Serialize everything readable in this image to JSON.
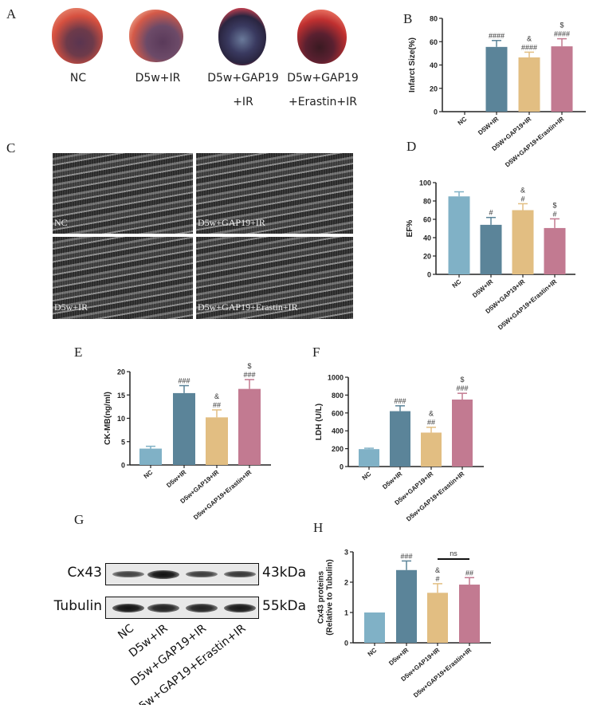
{
  "panels": {
    "A": "A",
    "B": "B",
    "C": "C",
    "D": "D",
    "E": "E",
    "F": "F",
    "G": "G",
    "H": "H"
  },
  "panel_a": {
    "groups": [
      "NC",
      "D5w+IR",
      "D5w+GAP19",
      "D5w+GAP19"
    ],
    "groups_line2": [
      "",
      "",
      "+IR",
      "+Erastin+IR"
    ]
  },
  "panel_c": {
    "labels": [
      "NC",
      "D5w+GAP19+IR",
      "D5w+IR",
      "D5w+GAP19+Erastin+IR"
    ]
  },
  "panel_g": {
    "proteins": [
      "Cx43",
      "Tubulin"
    ],
    "sizes": [
      "43kDa",
      "55kDa"
    ],
    "lanes": [
      "NC",
      "D5w+IR",
      "D5w+GAP19+IR",
      "D5w+GAP19+Erastin+IR"
    ],
    "band_intensity": {
      "Cx43": [
        0.55,
        1.0,
        0.6,
        0.65
      ],
      "Tubulin": [
        1.0,
        0.85,
        0.85,
        0.95
      ]
    }
  },
  "colors": [
    "#80b1c6",
    "#5b8499",
    "#e2be82",
    "#c27a91"
  ],
  "chart_data": [
    {
      "id": "B",
      "type": "bar",
      "categories": [
        "NC",
        "D5W+IR",
        "D5W+GAP19+IR",
        "D5W+GAP19+Erastin+IR"
      ],
      "values": [
        0,
        55.5,
        46.5,
        56
      ],
      "error_upper": [
        0,
        61,
        51,
        62.5
      ],
      "annotations": [
        [],
        [
          "####"
        ],
        [
          "&",
          "####"
        ],
        [
          "$",
          "####"
        ]
      ],
      "ylabel": [
        "Infarct Size(%)"
      ],
      "ylim": [
        0,
        80
      ],
      "yticks": [
        0,
        20,
        40,
        60,
        80
      ]
    },
    {
      "id": "D",
      "type": "bar",
      "categories": [
        "NC",
        "D5W+IR",
        "D5W+GAP19+IR",
        "D5W+GAP19+Erastin+IR"
      ],
      "values": [
        85,
        54,
        70,
        50.5
      ],
      "error_upper": [
        90,
        62,
        77,
        60.5
      ],
      "annotations": [
        [],
        [
          "#"
        ],
        [
          "&",
          "#"
        ],
        [
          "$",
          "#"
        ]
      ],
      "ylabel": [
        "EF%"
      ],
      "ylim": [
        0,
        100
      ],
      "yticks": [
        0,
        20,
        40,
        60,
        80,
        100
      ]
    },
    {
      "id": "E",
      "type": "bar",
      "categories": [
        "NC",
        "D5w+IR",
        "D5w+GAP19+IR",
        "D5w+GAP19+Erastin+IR"
      ],
      "values": [
        3.5,
        15.4,
        10.2,
        16.3
      ],
      "error_upper": [
        4.0,
        17.0,
        11.8,
        18.3
      ],
      "annotations": [
        [],
        [
          "###"
        ],
        [
          "&",
          "##"
        ],
        [
          "$",
          "###"
        ]
      ],
      "ylabel": [
        "CK-MB(ng/ml)"
      ],
      "ylim": [
        0,
        20
      ],
      "yticks": [
        0,
        5,
        10,
        15,
        20
      ]
    },
    {
      "id": "F",
      "type": "bar",
      "categories": [
        "NC",
        "D5w+IR",
        "D5w+GAP19+IR",
        "D5w+GAP19+Erastin+IR"
      ],
      "values": [
        195,
        620,
        380,
        750
      ],
      "error_upper": [
        205,
        680,
        440,
        820
      ],
      "annotations": [
        [],
        [
          "###"
        ],
        [
          "&",
          "##"
        ],
        [
          "$",
          "###"
        ]
      ],
      "ylabel": [
        "LDH (U/L)"
      ],
      "ylim": [
        0,
        1000
      ],
      "yticks": [
        0,
        200,
        400,
        600,
        800,
        1000
      ]
    },
    {
      "id": "H",
      "type": "bar",
      "categories": [
        "NC",
        "D5w+IR",
        "D5w+GAP19+IR",
        "D5w+GAP19+Erastin+IR"
      ],
      "values": [
        1.0,
        2.4,
        1.65,
        1.92
      ],
      "error_upper": [
        1.0,
        2.7,
        1.95,
        2.15
      ],
      "annotations": [
        [],
        [
          "###"
        ],
        [
          "&",
          "#"
        ],
        [
          "##"
        ]
      ],
      "bracket": {
        "between": [
          2,
          3
        ],
        "label": "ns"
      },
      "ylabel": [
        "Cx43 proteins",
        "(Relative to Tubulin)"
      ],
      "ylim": [
        0,
        3
      ],
      "yticks": [
        0,
        1,
        2,
        3
      ]
    }
  ]
}
